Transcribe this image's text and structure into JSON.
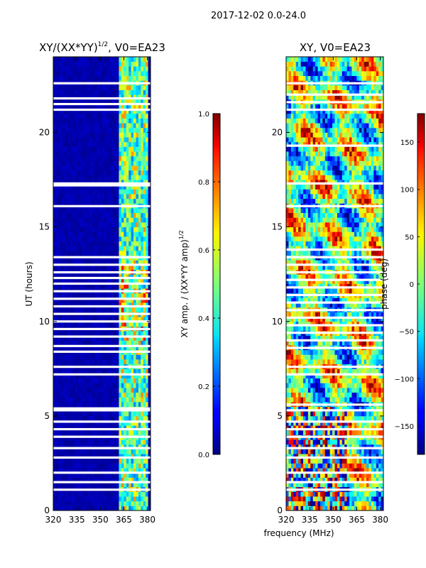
{
  "suptitle": "2017-12-02 0.0-24.0",
  "shared_xlabel": "frequency (MHz)",
  "chart_data": [
    {
      "type": "heatmap",
      "title": "XY/(XX*YY)^1/2, V0=EA23",
      "title_main": "XY/(XX*YY)",
      "title_sup": "1/2",
      "title_rest": ", V0=EA23",
      "xlabel": "",
      "ylabel": "UT (hours)",
      "xlim": [
        320,
        382
      ],
      "ylim": [
        0,
        24
      ],
      "xticks": [
        320,
        335,
        350,
        365,
        380
      ],
      "yticks": [
        0,
        5,
        10,
        15,
        20
      ],
      "colorbar": {
        "label_main": "XY amp. / (XX*YY amp)",
        "label_sup": "1/2",
        "range": [
          0.0,
          1.0
        ],
        "ticks": [
          "0.0",
          "0.2",
          "0.4",
          "0.6",
          "0.8",
          "1.0"
        ]
      },
      "colormap": "jet",
      "signal_band_mhz": [
        362,
        380
      ],
      "flagged_hours": [
        22.6,
        21.8,
        21.5,
        21.2,
        17.3,
        17.2,
        16.1,
        13.4,
        13.0,
        12.6,
        12.3,
        12.0,
        11.6,
        11.2,
        10.8,
        10.4,
        10.0,
        9.6,
        9.2,
        8.7,
        8.4,
        7.6,
        7.2,
        5.4,
        5.3,
        4.7,
        4.3,
        3.9,
        3.3,
        2.8,
        2.0,
        1.5,
        1.1
      ]
    },
    {
      "type": "heatmap",
      "title": "XY, V0=EA23",
      "xlabel": "frequency (MHz)",
      "ylabel": "",
      "xlim": [
        320,
        382
      ],
      "ylim": [
        0,
        24
      ],
      "xticks": [
        320,
        335,
        350,
        365,
        380
      ],
      "yticks": [
        0,
        5,
        10,
        15,
        20
      ],
      "colorbar": {
        "label": "phase (deg)",
        "range": [
          -180,
          180
        ],
        "ticks": [
          "−150",
          "−100",
          "−50",
          "0",
          "50",
          "100",
          "150"
        ],
        "tick_values": [
          -150,
          -100,
          -50,
          0,
          50,
          100,
          150
        ]
      },
      "colormap": "jet",
      "flagged_hours": [
        22.6,
        22.0,
        21.6,
        21.2,
        19.3,
        17.3,
        16.1,
        13.8,
        13.4,
        13.0,
        12.6,
        12.2,
        11.8,
        11.4,
        11.0,
        10.6,
        10.2,
        9.8,
        9.4,
        9.0,
        8.6,
        7.6,
        7.2,
        5.6,
        5.3,
        4.7,
        4.3,
        3.9,
        3.3,
        2.8,
        2.0,
        1.5,
        1.1
      ]
    }
  ]
}
